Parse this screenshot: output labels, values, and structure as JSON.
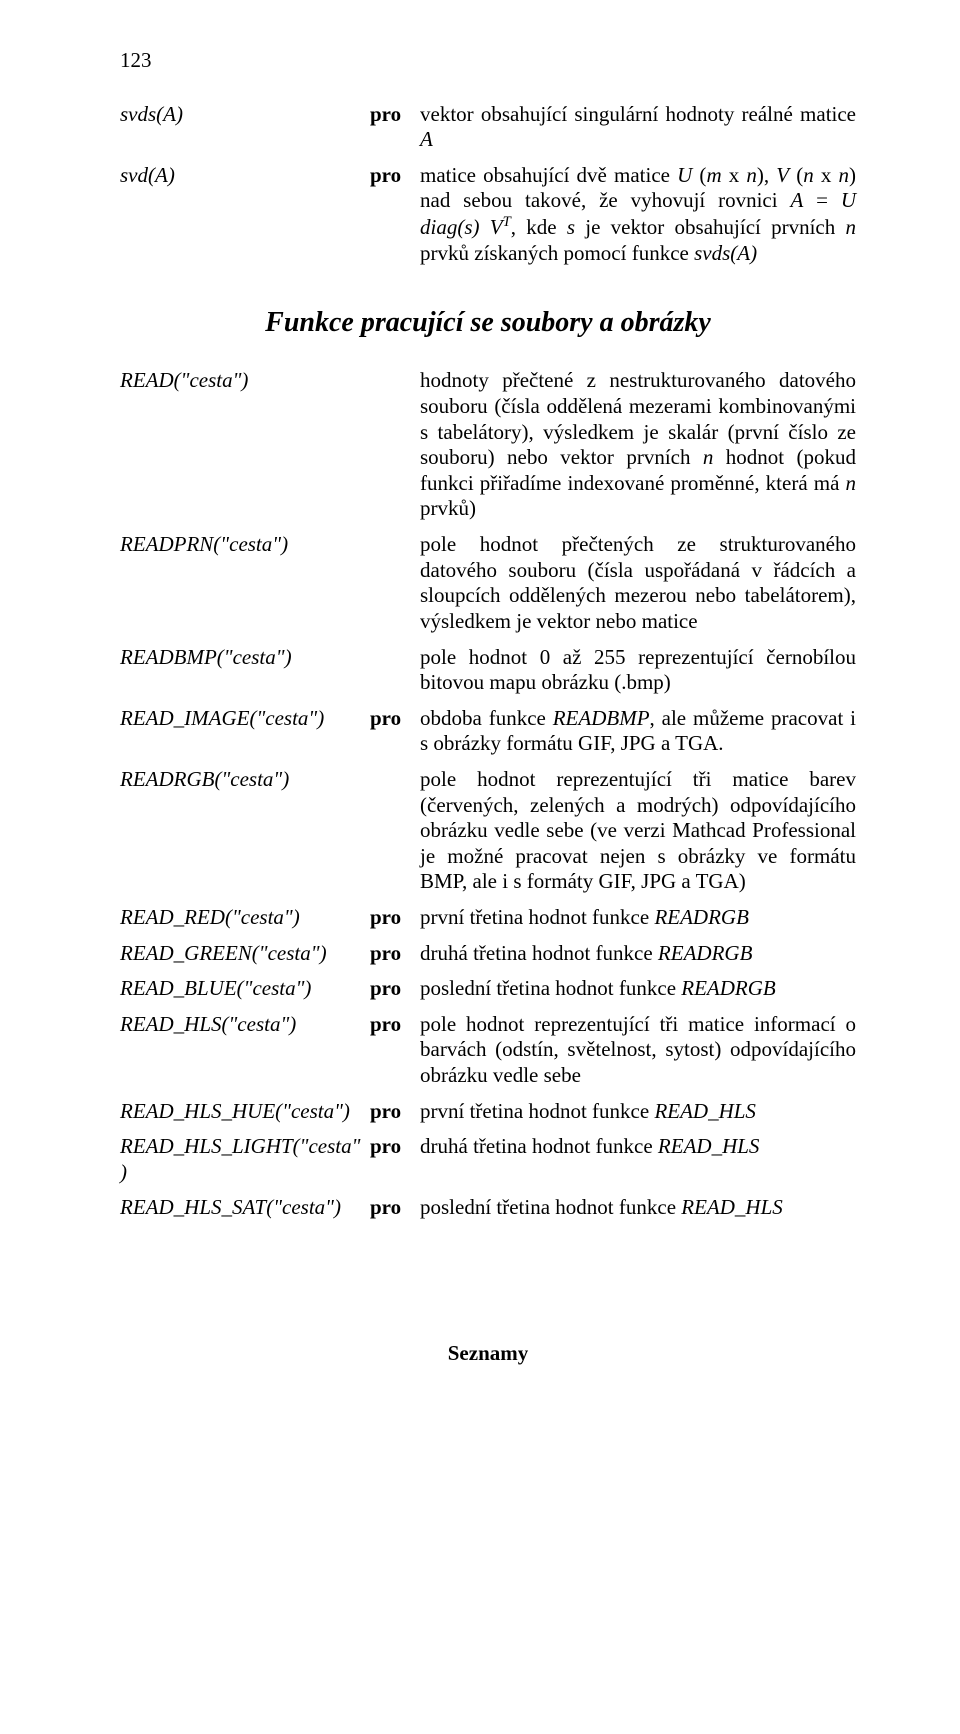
{
  "page_number": "123",
  "rows_top": [
    {
      "left": "svds(A)",
      "mid": "pro",
      "right_html": "vektor obsahující singulární hodnoty reálné matice <span class='ital'>A</span>"
    },
    {
      "left": "svd(A)",
      "mid": "pro",
      "right_html": "matice obsahující dvě matice <span class='ital'>U</span> (<span class='ital'>m</span> x <span class='ital'>n</span>), <span class='ital'>V</span> (<span class='ital'>n</span> x <span class='ital'>n</span>) nad sebou takové, že vyhovují rovnici <span class='ital'>A</span> = <span class='ital'>U</span> <span class='ital'>diag(s)</span> <span class='ital'>V</span><span class='sup'>T</span>, kde <span class='ital'>s</span> je vektor obsahující prvních <span class='ital'>n</span> prvků získaných pomocí funkce <span class='ital'>svds(A)</span>"
    }
  ],
  "section_heading": "Funkce pracující se soubory a obrázky",
  "rows_bottom": [
    {
      "left": "READ(\"cesta\")",
      "mid": "",
      "right_html": "hodnoty přečtené z nestrukturovaného datového souboru (čísla oddělená mezerami kombinovanými s tabelátory), výsledkem je skalár (první číslo ze souboru) nebo vektor prvních <span class='ital'>n</span> hodnot (pokud funkci přiřadíme indexované proměnné, která má <span class='ital'>n</span> prvků)"
    },
    {
      "left": "READPRN(\"cesta\")",
      "mid": "",
      "right_html": "pole hodnot přečtených ze strukturovaného datového souboru (čísla uspořádaná v řádcích a sloupcích oddělených mezerou nebo tabelátorem), výsledkem je vektor nebo matice"
    },
    {
      "left": "READBMP(\"cesta\")",
      "mid": "",
      "right_html": "pole hodnot 0 až 255 reprezentující černobílou bitovou mapu obrázku (.bmp)"
    },
    {
      "left": "READ_IMAGE(\"cesta\")",
      "mid": "pro",
      "right_html": "obdoba funkce <span class='ital'>READBMP</span>, ale můžeme pracovat i s obrázky formátu GIF, JPG a TGA."
    },
    {
      "left": "READRGB(\"cesta\")",
      "mid": "",
      "right_html": "pole hodnot reprezentující tři matice barev (červených, zelených a modrých) odpovídajícího obrázku vedle sebe (ve verzi Mathcad Professional je možné pracovat nejen s obrázky ve formátu BMP, ale i s formáty GIF, JPG a TGA)"
    },
    {
      "left": "READ_RED(\"cesta\")",
      "mid": "pro",
      "right_html": "první třetina hodnot funkce <span class='ital'>READRGB</span>"
    },
    {
      "left": "READ_GREEN(\"cesta\")",
      "mid": "pro",
      "right_html": "druhá třetina hodnot funkce <span class='ital'>READRGB</span>"
    },
    {
      "left": "READ_BLUE(\"cesta\")",
      "mid": "pro",
      "right_html": "poslední třetina hodnot funkce <span class='ital'>READRGB</span>"
    },
    {
      "left": "READ_HLS(\"cesta\")",
      "mid": "pro",
      "right_html": "pole hodnot reprezentující tři matice informací o barvách (odstín, světelnost, sytost) odpovídajícího obrázku vedle sebe"
    },
    {
      "left": "READ_HLS_HUE(\"cesta\")",
      "mid": "pro",
      "right_html": "první třetina hodnot funkce <span class='ital'>READ_HLS</span>"
    },
    {
      "left": "READ_HLS_LIGHT(\"cesta\")",
      "mid": "pro",
      "right_html": "druhá třetina hodnot funkce <span class='ital'>READ_HLS</span>"
    },
    {
      "left": "READ_HLS_SAT(\"cesta\")",
      "mid": "pro",
      "right_html": "poslední třetina hodnot funkce <span class='ital'>READ_HLS</span>"
    }
  ],
  "footer": "Seznamy"
}
